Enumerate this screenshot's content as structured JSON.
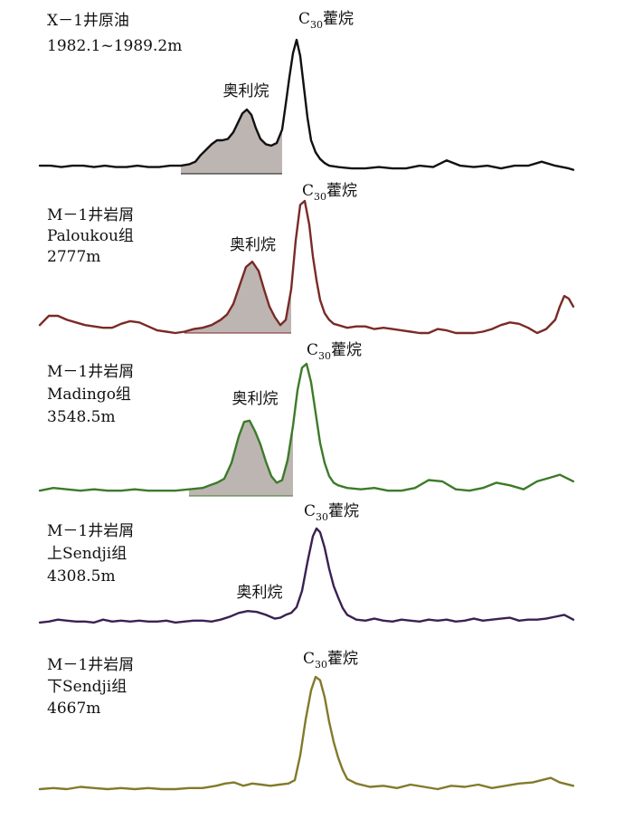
{
  "chart_data": [
    {
      "type": "line",
      "label_lines": [
        "X－1井原油",
        "1982.1~1989.2m"
      ],
      "line_color": "#111111",
      "c30_label": {
        "prefix": "C",
        "sub": "30",
        "suffix": "藿烷"
      },
      "oleanane_label": "奥利烷",
      "oleanane_fill": "#bdb5b2",
      "x": [
        0,
        12,
        24,
        36,
        48,
        60,
        72,
        84,
        96,
        108,
        120,
        132,
        144,
        156,
        165,
        172,
        178,
        184,
        190,
        196,
        202,
        208,
        214,
        219,
        224,
        229,
        234,
        239,
        244,
        250,
        256,
        262,
        268,
        272,
        276,
        280,
        284,
        288,
        292,
        296,
        300,
        305,
        310,
        315,
        320,
        330,
        345,
        360,
        375,
        390,
        405,
        420,
        435,
        450,
        465,
        480,
        495,
        510,
        525,
        540,
        555,
        570,
        585,
        590
      ],
      "y": [
        0.06,
        0.06,
        0.05,
        0.06,
        0.06,
        0.05,
        0.06,
        0.05,
        0.05,
        0.06,
        0.05,
        0.05,
        0.06,
        0.06,
        0.07,
        0.09,
        0.14,
        0.18,
        0.22,
        0.25,
        0.25,
        0.26,
        0.31,
        0.38,
        0.45,
        0.48,
        0.44,
        0.34,
        0.26,
        0.22,
        0.21,
        0.23,
        0.33,
        0.52,
        0.72,
        0.9,
        1.0,
        0.88,
        0.65,
        0.42,
        0.25,
        0.16,
        0.11,
        0.08,
        0.06,
        0.05,
        0.04,
        0.04,
        0.05,
        0.04,
        0.04,
        0.06,
        0.05,
        0.1,
        0.06,
        0.05,
        0.06,
        0.04,
        0.06,
        0.06,
        0.09,
        0.06,
        0.04,
        0.03
      ],
      "oleanane_range": [
        155,
        270
      ],
      "c30_peak_x": 300
    },
    {
      "type": "line",
      "label_lines": [
        "M－1井岩屑",
        "Paloukou组",
        "2777m"
      ],
      "line_color": "#7a2a26",
      "c30_label": {
        "prefix": "C",
        "sub": "30",
        "suffix": "藿烷"
      },
      "oleanane_label": "奥利烷",
      "oleanane_fill": "#bdb5b2",
      "x": [
        0,
        10,
        20,
        30,
        40,
        50,
        60,
        70,
        80,
        90,
        100,
        110,
        120,
        130,
        140,
        150,
        160,
        170,
        180,
        190,
        200,
        207,
        214,
        221,
        228,
        235,
        242,
        248,
        254,
        260,
        266,
        272,
        278,
        283,
        288,
        293,
        298,
        302,
        306,
        310,
        315,
        320,
        325,
        330,
        340,
        350,
        360,
        370,
        380,
        390,
        400,
        410,
        420,
        430,
        440,
        450,
        460,
        470,
        480,
        490,
        500,
        510,
        520,
        530,
        540,
        550,
        560,
        570,
        575,
        580,
        585,
        590
      ],
      "y": [
        0.06,
        0.13,
        0.13,
        0.1,
        0.08,
        0.06,
        0.05,
        0.04,
        0.04,
        0.07,
        0.09,
        0.08,
        0.05,
        0.02,
        0.01,
        0.0,
        0.01,
        0.03,
        0.04,
        0.06,
        0.1,
        0.14,
        0.22,
        0.36,
        0.5,
        0.54,
        0.47,
        0.33,
        0.2,
        0.12,
        0.06,
        0.1,
        0.33,
        0.7,
        0.97,
        1.0,
        0.82,
        0.58,
        0.4,
        0.25,
        0.15,
        0.1,
        0.07,
        0.06,
        0.04,
        0.05,
        0.05,
        0.03,
        0.04,
        0.03,
        0.02,
        0.01,
        0.0,
        0.0,
        0.03,
        0.02,
        0.0,
        0.0,
        0.0,
        0.01,
        0.03,
        0.06,
        0.08,
        0.07,
        0.04,
        0.0,
        0.03,
        0.1,
        0.2,
        0.28,
        0.26,
        0.2
      ],
      "oleanane_range": [
        160,
        280
      ],
      "c30_peak_x": 304
    },
    {
      "type": "line",
      "label_lines": [
        "M－1井岩屑",
        "Madingo组",
        "3548.5m"
      ],
      "line_color": "#3d7a2a",
      "c30_label": {
        "prefix": "C",
        "sub": "30",
        "suffix": "藿烷"
      },
      "oleanane_label": "奥利烷",
      "oleanane_fill": "#bdb5b2",
      "x": [
        0,
        15,
        30,
        45,
        60,
        75,
        90,
        105,
        120,
        135,
        150,
        165,
        180,
        188,
        196,
        204,
        212,
        220,
        226,
        232,
        238,
        244,
        250,
        256,
        262,
        268,
        274,
        280,
        285,
        290,
        295,
        300,
        305,
        310,
        315,
        320,
        325,
        330,
        340,
        355,
        370,
        385,
        400,
        415,
        430,
        445,
        460,
        475,
        490,
        505,
        520,
        535,
        550,
        565,
        575,
        590
      ],
      "y": [
        0.04,
        0.06,
        0.05,
        0.04,
        0.05,
        0.04,
        0.04,
        0.05,
        0.04,
        0.04,
        0.04,
        0.05,
        0.06,
        0.08,
        0.1,
        0.13,
        0.25,
        0.45,
        0.56,
        0.57,
        0.49,
        0.39,
        0.26,
        0.15,
        0.1,
        0.12,
        0.27,
        0.53,
        0.8,
        0.97,
        1.0,
        0.86,
        0.63,
        0.4,
        0.25,
        0.15,
        0.1,
        0.08,
        0.06,
        0.05,
        0.06,
        0.04,
        0.04,
        0.06,
        0.12,
        0.11,
        0.05,
        0.04,
        0.06,
        0.1,
        0.08,
        0.05,
        0.11,
        0.14,
        0.16,
        0.11
      ],
      "oleanane_range": [
        165,
        280
      ],
      "c30_peak_x": 309
    },
    {
      "type": "line",
      "label_lines": [
        "M－1井岩屑",
        "上Sendji组",
        "4308.5m"
      ],
      "line_color": "#3a2152",
      "c30_label": {
        "prefix": "C",
        "sub": "30",
        "suffix": "藿烷"
      },
      "oleanane_label": "奥利烷",
      "x": [
        0,
        10,
        20,
        30,
        40,
        50,
        60,
        70,
        80,
        90,
        100,
        110,
        120,
        130,
        140,
        150,
        160,
        170,
        180,
        190,
        200,
        210,
        220,
        230,
        240,
        250,
        260,
        266,
        272,
        278,
        284,
        290,
        296,
        302,
        306,
        310,
        315,
        320,
        325,
        330,
        335,
        340,
        350,
        360,
        370,
        380,
        390,
        400,
        410,
        420,
        430,
        440,
        450,
        460,
        470,
        480,
        490,
        500,
        510,
        520,
        530,
        540,
        550,
        560,
        570,
        580,
        590
      ],
      "y": [
        0.02,
        0.03,
        0.05,
        0.04,
        0.03,
        0.03,
        0.02,
        0.05,
        0.03,
        0.04,
        0.03,
        0.04,
        0.03,
        0.03,
        0.04,
        0.02,
        0.03,
        0.04,
        0.04,
        0.03,
        0.05,
        0.08,
        0.12,
        0.14,
        0.13,
        0.1,
        0.06,
        0.07,
        0.1,
        0.12,
        0.18,
        0.35,
        0.65,
        0.92,
        1.0,
        0.96,
        0.8,
        0.58,
        0.4,
        0.28,
        0.17,
        0.1,
        0.05,
        0.04,
        0.06,
        0.04,
        0.03,
        0.05,
        0.04,
        0.03,
        0.05,
        0.04,
        0.05,
        0.03,
        0.04,
        0.06,
        0.04,
        0.05,
        0.06,
        0.07,
        0.04,
        0.05,
        0.05,
        0.06,
        0.08,
        0.1,
        0.05
      ],
      "oleanane_range": [
        195,
        260
      ],
      "c30_peak_x": 306
    },
    {
      "type": "line",
      "label_lines": [
        "M－1井岩屑",
        "下Sendji组",
        "4667m"
      ],
      "line_color": "#827a2a",
      "c30_label": {
        "prefix": "C",
        "sub": "30",
        "suffix": "藿烷"
      },
      "x": [
        0,
        15,
        30,
        45,
        60,
        75,
        90,
        105,
        120,
        135,
        150,
        165,
        180,
        195,
        205,
        215,
        225,
        235,
        245,
        255,
        265,
        275,
        282,
        288,
        294,
        300,
        305,
        310,
        315,
        320,
        325,
        330,
        335,
        340,
        350,
        365,
        380,
        395,
        410,
        425,
        440,
        455,
        470,
        485,
        500,
        515,
        530,
        545,
        555,
        565,
        575,
        590
      ],
      "y": [
        0.0,
        0.01,
        0.0,
        0.02,
        0.01,
        0.0,
        0.01,
        0.0,
        0.01,
        0.0,
        0.0,
        0.01,
        0.01,
        0.03,
        0.05,
        0.06,
        0.03,
        0.05,
        0.04,
        0.03,
        0.04,
        0.05,
        0.08,
        0.3,
        0.62,
        0.88,
        1.0,
        0.97,
        0.82,
        0.6,
        0.42,
        0.28,
        0.17,
        0.09,
        0.05,
        0.02,
        0.03,
        0.01,
        0.04,
        0.02,
        0.0,
        0.03,
        0.02,
        0.04,
        0.01,
        0.03,
        0.05,
        0.06,
        0.08,
        0.1,
        0.06,
        0.03
      ],
      "c30_peak_x": 305
    }
  ]
}
